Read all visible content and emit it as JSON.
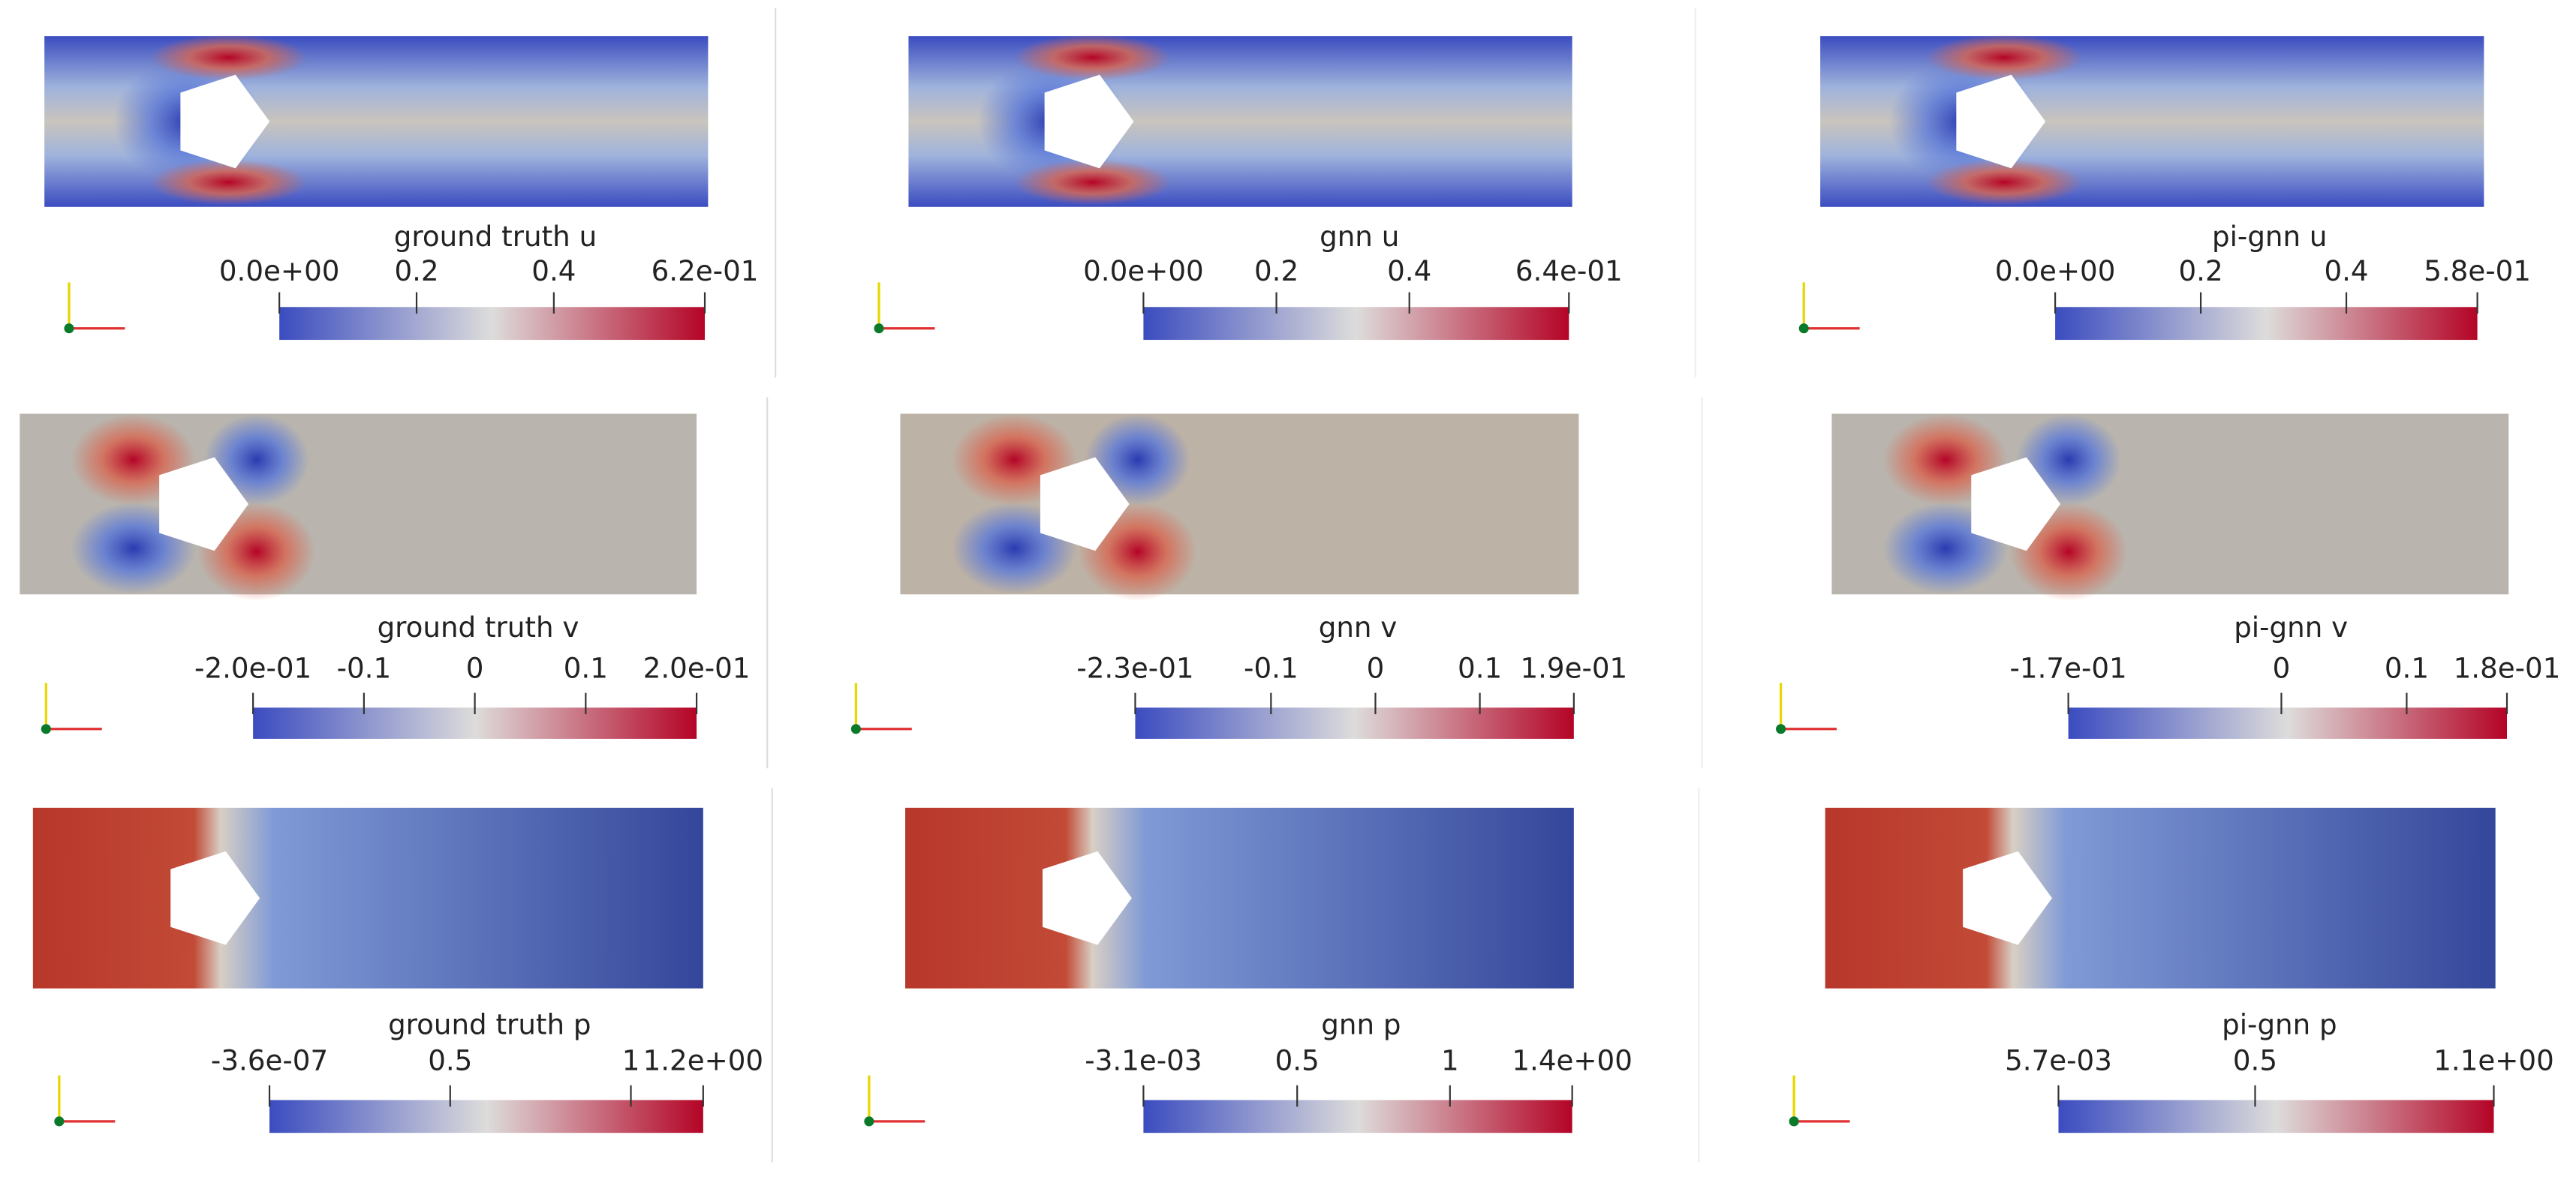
{
  "panels": [
    {
      "title": "ground truth u",
      "ticks": [
        {
          "value": 0,
          "label": "0.0e+00"
        },
        0.2,
        0.4,
        {
          "value": 0.62,
          "label": "6.2e-01"
        }
      ]
    },
    {
      "title": "gnn u",
      "ticks": [
        {
          "value": 0,
          "label": "0.0e+00"
        },
        0.2,
        0.4,
        {
          "value": 0.64,
          "label": "6.4e-01"
        }
      ]
    },
    {
      "title": "pi-gnn u",
      "ticks": [
        {
          "value": 0,
          "label": "0.0e+00"
        },
        0.2,
        0.4,
        {
          "value": 0.58,
          "label": "5.8e-01"
        }
      ]
    },
    {
      "title": "ground truth v",
      "ticks": [
        {
          "value": -0.2,
          "label": "-2.0e-01"
        },
        -0.1,
        0,
        0.1,
        {
          "value": 0.2,
          "label": "2.0e-01"
        }
      ]
    },
    {
      "title": "gnn v",
      "ticks": [
        {
          "value": -0.23,
          "label": "-2.3e-01"
        },
        -0.1,
        0,
        0.1,
        {
          "value": 0.19,
          "label": "1.9e-01"
        }
      ]
    },
    {
      "title": "pi-gnn v",
      "ticks": [
        {
          "value": -0.17,
          "label": "-1.7e-01"
        },
        0,
        0.1,
        {
          "value": 0.18,
          "label": "1.8e-01"
        }
      ]
    },
    {
      "title": "ground truth p",
      "ticks": [
        {
          "value": -3.6e-07,
          "label": "-3.6e-07"
        },
        0.5,
        1,
        {
          "value": 1.2,
          "label": "1.2e+00"
        }
      ]
    },
    {
      "title": "gnn p",
      "ticks": [
        {
          "value": -0.0031,
          "label": "-3.1e-03"
        },
        0.5,
        1,
        {
          "value": 1.4,
          "label": "1.4e+00"
        }
      ]
    },
    {
      "title": "pi-gnn p",
      "ticks": [
        {
          "value": 0.0057,
          "label": "5.7e-03"
        },
        0.5,
        {
          "value": 1.1,
          "label": "1.1e+00"
        }
      ]
    }
  ]
}
